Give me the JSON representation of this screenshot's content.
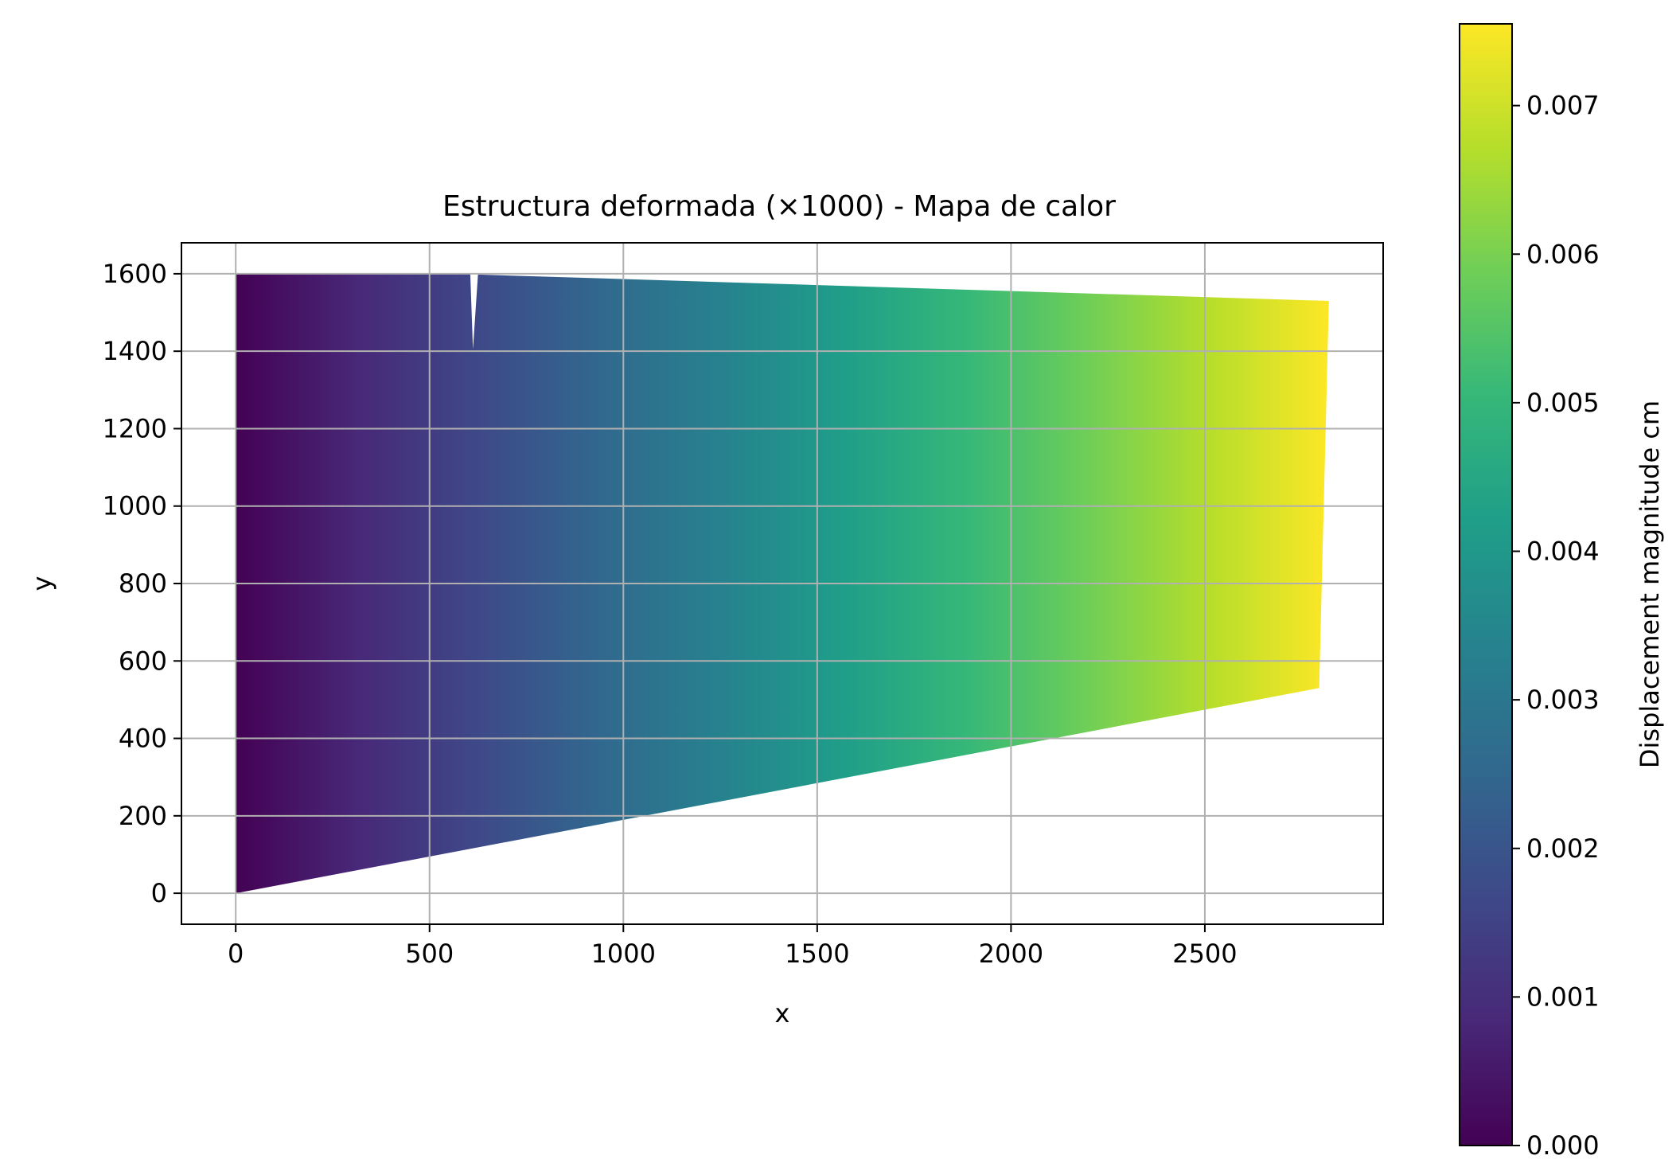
{
  "chart_data": {
    "type": "heatmap",
    "title": "Estructura deformada (×1000) - Mapa de calor",
    "xlabel": "x",
    "ylabel": "y",
    "xlim": [
      -140,
      2960
    ],
    "ylim": [
      -80,
      1680
    ],
    "xticks": [
      0,
      500,
      1000,
      1500,
      2000,
      2500
    ],
    "yticks": [
      0,
      200,
      400,
      600,
      800,
      1000,
      1200,
      1400,
      1600
    ],
    "grid": true,
    "colorbar": {
      "label": "Displacement magnitude cm",
      "range": [
        0,
        0.00755
      ],
      "ticks": [
        "0.000",
        "0.001",
        "0.002",
        "0.003",
        "0.004",
        "0.005",
        "0.006",
        "0.007"
      ],
      "colormap": "viridis",
      "colors": [
        "#440154",
        "#482878",
        "#3e4989",
        "#31688e",
        "#26828e",
        "#1f9e89",
        "#35b779",
        "#6ece58",
        "#b5de2b",
        "#fde725"
      ]
    },
    "deformed_shape": {
      "outline": [
        [
          0,
          0
        ],
        [
          0,
          1600
        ],
        [
          605,
          1600
        ],
        [
          612,
          1405
        ],
        [
          625,
          1598
        ],
        [
          2820,
          1530
        ],
        [
          2795,
          530
        ]
      ],
      "displacement_along_x": [
        [
          0,
          0.0
        ],
        [
          2820,
          0.00755
        ]
      ]
    }
  }
}
